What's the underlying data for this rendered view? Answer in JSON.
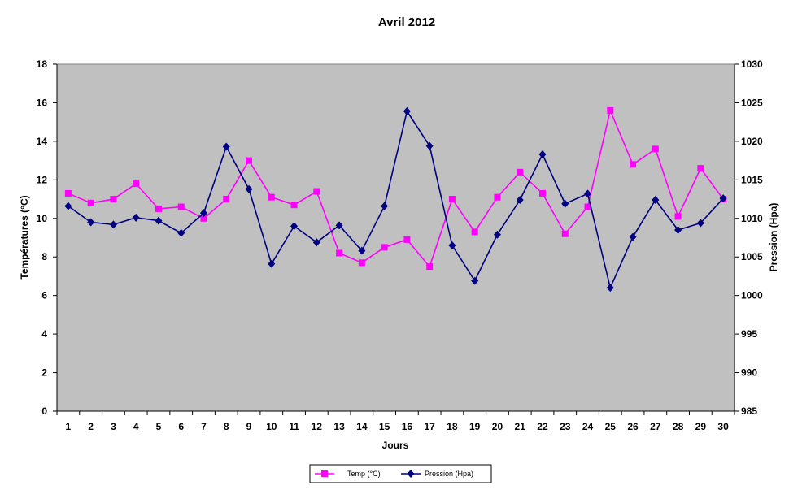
{
  "chart_data": {
    "type": "line",
    "title": "Avril 2012",
    "xlabel": "Jours",
    "ylabel_left": "Températures (°C)",
    "ylabel_right": "Pression (Hpa)",
    "categories": [
      "1",
      "2",
      "3",
      "4",
      "5",
      "6",
      "7",
      "8",
      "9",
      "10",
      "11",
      "12",
      "13",
      "14",
      "15",
      "16",
      "17",
      "18",
      "19",
      "20",
      "21",
      "22",
      "23",
      "24",
      "25",
      "26",
      "27",
      "28",
      "29",
      "30"
    ],
    "ylim_left": [
      0,
      18
    ],
    "ylim_right": [
      985,
      1030
    ],
    "yticks_left": [
      "0",
      "2",
      "4",
      "6",
      "8",
      "10",
      "12",
      "14",
      "16",
      "18"
    ],
    "yticks_right": [
      "985",
      "990",
      "995",
      "1000",
      "1005",
      "1010",
      "1015",
      "1020",
      "1025",
      "1030"
    ],
    "grid": false,
    "plot_background": "#c0c0c0",
    "legend_position": "bottom-center",
    "series": [
      {
        "name": "Temp (°C)",
        "axis": "left",
        "color": "#ff00ff",
        "marker": "square",
        "values": [
          11.3,
          10.8,
          11.0,
          11.8,
          10.5,
          10.6,
          10.0,
          11.0,
          13.0,
          11.1,
          10.7,
          11.4,
          8.2,
          7.7,
          8.5,
          8.9,
          7.5,
          11.0,
          9.3,
          11.1,
          12.4,
          11.3,
          9.2,
          10.6,
          15.6,
          12.8,
          13.6,
          10.1,
          12.6,
          11.0
        ]
      },
      {
        "name": "Pression (Hpa)",
        "axis": "right",
        "color": "#000080",
        "marker": "diamond",
        "values": [
          1011.6,
          1009.5,
          1009.2,
          1010.1,
          1009.7,
          1008.1,
          1010.7,
          1019.3,
          1013.8,
          1004.1,
          1009.0,
          1006.9,
          1009.1,
          1005.8,
          1011.6,
          1023.9,
          1019.4,
          1006.5,
          1001.9,
          1007.9,
          1012.4,
          1018.3,
          1011.9,
          1013.2,
          1001.0,
          1007.6,
          1012.4,
          1008.5,
          1009.4,
          1012.6
        ]
      }
    ]
  }
}
